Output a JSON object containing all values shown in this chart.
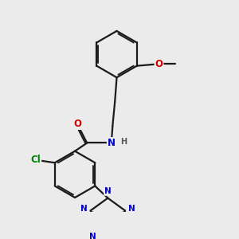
{
  "bg_color": "#ebebeb",
  "bond_color": "#1a1a1a",
  "bond_width": 1.6,
  "atom_colors": {
    "O": "#cc0000",
    "N": "#0000cc",
    "Cl": "#008000",
    "C": "#1a1a1a",
    "H": "#555555"
  },
  "font_size_atom": 8.5,
  "font_size_small": 7.0
}
